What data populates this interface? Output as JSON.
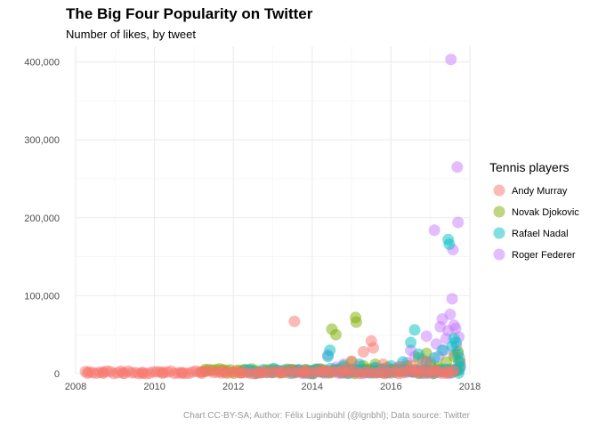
{
  "chart_data": {
    "type": "scatter",
    "title": "The Big Four Popularity on Twitter",
    "subtitle": "Number of likes, by tweet",
    "caption": "Chart CC-BY-SA; Author: Félix Luginbühl (@lgnbhl); Data source: Twitter",
    "xlabel": "",
    "ylabel": "",
    "xlim": [
      2008,
      2018
    ],
    "ylim": [
      0,
      420000
    ],
    "x_ticks": [
      2008,
      2010,
      2012,
      2014,
      2016,
      2018
    ],
    "x_tick_labels": [
      "2008",
      "2010",
      "2012",
      "2014",
      "2016",
      "2018"
    ],
    "y_ticks": [
      0,
      100000,
      200000,
      300000,
      400000
    ],
    "y_tick_labels": [
      "0",
      "100,000",
      "200,000",
      "300,000",
      "400,000"
    ],
    "grid": true,
    "legend": {
      "title": "Tennis players",
      "position": "right"
    },
    "series": [
      {
        "name": "Roger Federer",
        "color": "#C77CFF",
        "points": [
          [
            2013.5,
            5000
          ],
          [
            2013.8,
            3000
          ],
          [
            2014.2,
            6000
          ],
          [
            2014.4,
            24000
          ],
          [
            2014.6,
            8000
          ],
          [
            2014.8,
            12000
          ],
          [
            2015.0,
            5000
          ],
          [
            2015.2,
            9000
          ],
          [
            2015.4,
            4000
          ],
          [
            2015.6,
            7000
          ],
          [
            2015.8,
            6000
          ],
          [
            2016.0,
            3000
          ],
          [
            2016.2,
            9000
          ],
          [
            2016.4,
            14000
          ],
          [
            2016.5,
            30000
          ],
          [
            2016.6,
            22000
          ],
          [
            2016.8,
            18000
          ],
          [
            2016.9,
            48000
          ],
          [
            2017.0,
            15000
          ],
          [
            2017.1,
            184000
          ],
          [
            2017.15,
            38000
          ],
          [
            2017.2,
            22000
          ],
          [
            2017.25,
            60000
          ],
          [
            2017.3,
            70000
          ],
          [
            2017.35,
            30000
          ],
          [
            2017.4,
            45000
          ],
          [
            2017.45,
            55000
          ],
          [
            2017.5,
            76000
          ],
          [
            2017.52,
            403000
          ],
          [
            2017.55,
            96000
          ],
          [
            2017.57,
            159000
          ],
          [
            2017.6,
            62000
          ],
          [
            2017.62,
            25000
          ],
          [
            2017.64,
            58000
          ],
          [
            2017.66,
            35000
          ],
          [
            2017.68,
            265000
          ],
          [
            2017.7,
            194000
          ],
          [
            2017.72,
            47000
          ],
          [
            2017.74,
            20000
          ],
          [
            2017.76,
            10000
          ]
        ]
      },
      {
        "name": "Novak Djokovic",
        "color": "#7CAE00",
        "points": [
          [
            2011.3,
            3000
          ],
          [
            2011.8,
            1000
          ],
          [
            2012.2,
            1500
          ],
          [
            2012.6,
            1000
          ],
          [
            2013.0,
            1500
          ],
          [
            2013.5,
            2000
          ],
          [
            2014.0,
            3000
          ],
          [
            2014.3,
            5000
          ],
          [
            2014.5,
            57000
          ],
          [
            2014.6,
            50000
          ],
          [
            2014.8,
            8000
          ],
          [
            2015.0,
            15000
          ],
          [
            2015.1,
            72000
          ],
          [
            2015.12,
            66000
          ],
          [
            2015.3,
            10000
          ],
          [
            2015.6,
            12000
          ],
          [
            2015.9,
            8000
          ],
          [
            2016.1,
            6000
          ],
          [
            2016.4,
            10000
          ],
          [
            2016.7,
            20000
          ],
          [
            2016.9,
            26000
          ],
          [
            2017.0,
            12000
          ],
          [
            2017.2,
            8000
          ],
          [
            2017.4,
            15000
          ],
          [
            2017.6,
            22000
          ],
          [
            2017.7,
            28000
          ],
          [
            2017.75,
            15000
          ]
        ]
      },
      {
        "name": "Rafael Nadal",
        "color": "#00BFC4",
        "points": [
          [
            2012.4,
            2000
          ],
          [
            2013.0,
            1500
          ],
          [
            2013.6,
            3000
          ],
          [
            2014.0,
            4000
          ],
          [
            2014.4,
            22000
          ],
          [
            2014.45,
            30000
          ],
          [
            2014.8,
            10000
          ],
          [
            2015.2,
            12000
          ],
          [
            2015.6,
            8000
          ],
          [
            2016.0,
            10000
          ],
          [
            2016.3,
            15000
          ],
          [
            2016.5,
            40000
          ],
          [
            2016.6,
            56000
          ],
          [
            2016.7,
            25000
          ],
          [
            2016.9,
            15000
          ],
          [
            2017.1,
            20000
          ],
          [
            2017.3,
            30000
          ],
          [
            2017.45,
            172000
          ],
          [
            2017.48,
            166000
          ],
          [
            2017.55,
            35000
          ],
          [
            2017.6,
            45000
          ],
          [
            2017.65,
            40000
          ],
          [
            2017.7,
            25000
          ],
          [
            2017.72,
            15000
          ],
          [
            2017.75,
            8000
          ]
        ]
      },
      {
        "name": "Andy Murray",
        "color": "#F8766D",
        "points": [
          [
            2008.3,
            500
          ],
          [
            2008.7,
            500
          ],
          [
            2009.2,
            500
          ],
          [
            2009.7,
            500
          ],
          [
            2010.2,
            500
          ],
          [
            2010.7,
            500
          ],
          [
            2011.2,
            500
          ],
          [
            2011.7,
            800
          ],
          [
            2012.2,
            800
          ],
          [
            2012.7,
            1000
          ],
          [
            2013.2,
            1200
          ],
          [
            2013.55,
            67000
          ],
          [
            2013.8,
            2000
          ],
          [
            2014.3,
            3000
          ],
          [
            2014.8,
            6000
          ],
          [
            2015.0,
            16000
          ],
          [
            2015.3,
            28000
          ],
          [
            2015.5,
            42000
          ],
          [
            2015.55,
            33000
          ],
          [
            2015.8,
            12000
          ],
          [
            2016.2,
            8000
          ],
          [
            2016.5,
            10000
          ],
          [
            2016.7,
            6000
          ],
          [
            2016.9,
            15000
          ],
          [
            2017.1,
            5000
          ],
          [
            2017.4,
            3000
          ],
          [
            2017.6,
            4000
          ]
        ]
      }
    ],
    "dense_base": [
      {
        "name": "Roger Federer",
        "from": 2013.4,
        "to": 2017.75,
        "max": 6000
      },
      {
        "name": "Novak Djokovic",
        "from": 2011.2,
        "to": 2017.75,
        "max": 6000
      },
      {
        "name": "Rafael Nadal",
        "from": 2012.3,
        "to": 2017.75,
        "max": 7000
      },
      {
        "name": "Andy Murray",
        "from": 2008.25,
        "to": 2017.6,
        "max": 3500
      }
    ],
    "draw_order": [
      "Roger Federer",
      "Novak Djokovic",
      "Rafael Nadal",
      "Andy Murray"
    ],
    "legend_order": [
      "Andy Murray",
      "Novak Djokovic",
      "Rafael Nadal",
      "Roger Federer"
    ]
  }
}
